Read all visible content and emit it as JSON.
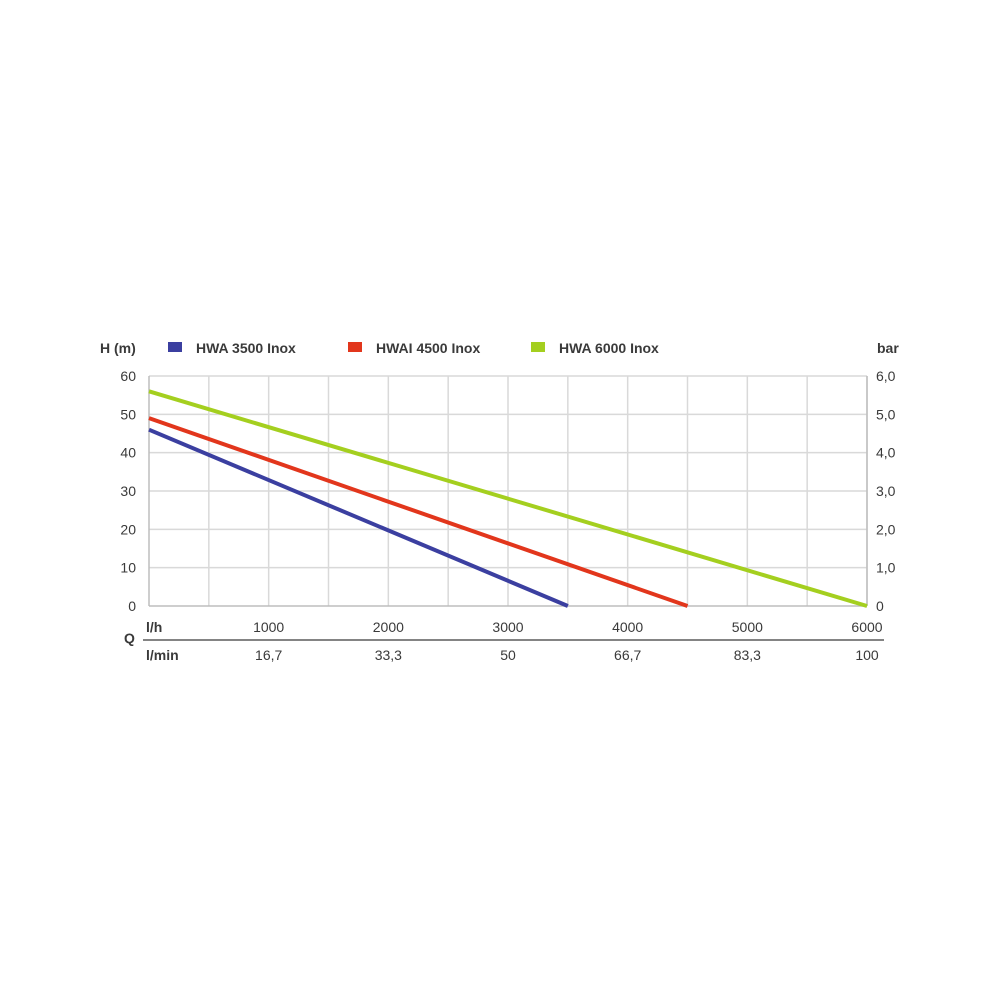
{
  "chart_data": {
    "type": "line",
    "y_left_label": "H (m)",
    "y_right_label": "bar",
    "q_label": "Q",
    "x_unit_lh": "l/h",
    "x_unit_lmin": "l/min",
    "legend_position": "top",
    "grid": true,
    "xlim": [
      0,
      6000
    ],
    "ylim": [
      0,
      60
    ],
    "x_ticks": [
      1000,
      2000,
      3000,
      4000,
      5000,
      6000
    ],
    "x_tick_labels_lh": [
      "1000",
      "2000",
      "3000",
      "4000",
      "5000",
      "6000"
    ],
    "x_tick_labels_lmin": [
      "16,7",
      "33,3",
      "50",
      "66,7",
      "83,3",
      "100"
    ],
    "y_ticks": [
      0,
      10,
      20,
      30,
      40,
      50,
      60
    ],
    "y_tick_labels_left": [
      "0",
      "10",
      "20",
      "30",
      "40",
      "50",
      "60"
    ],
    "y_tick_labels_right": [
      "0",
      "1,0",
      "2,0",
      "3,0",
      "4,0",
      "5,0",
      "6,0"
    ],
    "series": [
      {
        "name": "HWA 3500 Inox",
        "color": "#3b3fa0",
        "x": [
          0,
          3500
        ],
        "y": [
          46,
          0
        ]
      },
      {
        "name": "HWAI 4500 Inox",
        "color": "#e2361c",
        "x": [
          0,
          4500
        ],
        "y": [
          49,
          0
        ]
      },
      {
        "name": "HWA 6000 Inox",
        "color": "#a4cf1f",
        "x": [
          0,
          6000
        ],
        "y": [
          56,
          0
        ]
      }
    ]
  }
}
